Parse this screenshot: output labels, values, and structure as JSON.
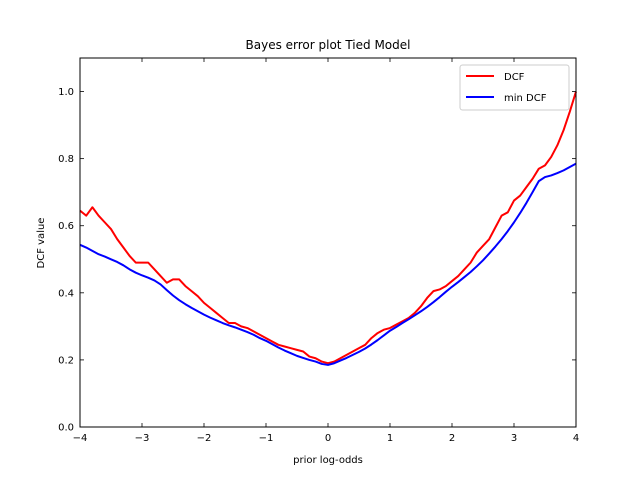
{
  "chart_data": {
    "type": "line",
    "title": "Bayes error plot Tied Model",
    "xlabel": "prior log-odds",
    "ylabel": "DCF value",
    "xlim": [
      -4,
      4
    ],
    "ylim": [
      0,
      1.1
    ],
    "xticks": [
      -4,
      -3,
      -2,
      -1,
      0,
      1,
      2,
      3,
      4
    ],
    "xtick_labels": [
      "−4",
      "−3",
      "−2",
      "−1",
      "0",
      "1",
      "2",
      "3",
      "4"
    ],
    "yticks": [
      0.0,
      0.2,
      0.4,
      0.6,
      0.8,
      1.0
    ],
    "ytick_labels": [
      "0.0",
      "0.2",
      "0.4",
      "0.6",
      "0.8",
      "1.0"
    ],
    "grid": false,
    "legend_position": "upper right",
    "series": [
      {
        "name": "DCF",
        "color": "#ff0000",
        "x": [
          -4.0,
          -3.9,
          -3.8,
          -3.7,
          -3.6,
          -3.5,
          -3.4,
          -3.3,
          -3.2,
          -3.1,
          -3.0,
          -2.9,
          -2.8,
          -2.7,
          -2.6,
          -2.5,
          -2.4,
          -2.3,
          -2.2,
          -2.1,
          -2.0,
          -1.9,
          -1.8,
          -1.7,
          -1.6,
          -1.5,
          -1.4,
          -1.3,
          -1.2,
          -1.1,
          -1.0,
          -0.9,
          -0.8,
          -0.7,
          -0.6,
          -0.5,
          -0.4,
          -0.3,
          -0.2,
          -0.1,
          0.0,
          0.1,
          0.2,
          0.3,
          0.4,
          0.5,
          0.6,
          0.7,
          0.8,
          0.9,
          1.0,
          1.1,
          1.2,
          1.3,
          1.4,
          1.5,
          1.6,
          1.7,
          1.8,
          1.9,
          2.0,
          2.1,
          2.2,
          2.3,
          2.4,
          2.5,
          2.6,
          2.7,
          2.8,
          2.9,
          3.0,
          3.1,
          3.2,
          3.3,
          3.4,
          3.5,
          3.6,
          3.7,
          3.8,
          3.9,
          4.0
        ],
        "y": [
          0.645,
          0.63,
          0.655,
          0.63,
          0.61,
          0.59,
          0.56,
          0.535,
          0.51,
          0.49,
          0.49,
          0.49,
          0.47,
          0.45,
          0.43,
          0.44,
          0.44,
          0.42,
          0.405,
          0.39,
          0.37,
          0.355,
          0.34,
          0.325,
          0.31,
          0.31,
          0.3,
          0.295,
          0.285,
          0.275,
          0.265,
          0.255,
          0.245,
          0.24,
          0.235,
          0.23,
          0.225,
          0.21,
          0.205,
          0.195,
          0.19,
          0.195,
          0.205,
          0.215,
          0.225,
          0.235,
          0.245,
          0.265,
          0.28,
          0.29,
          0.295,
          0.305,
          0.315,
          0.325,
          0.34,
          0.36,
          0.385,
          0.405,
          0.41,
          0.42,
          0.435,
          0.45,
          0.47,
          0.49,
          0.52,
          0.54,
          0.56,
          0.595,
          0.63,
          0.64,
          0.675,
          0.69,
          0.715,
          0.74,
          0.77,
          0.78,
          0.805,
          0.84,
          0.885,
          0.94,
          1.0
        ]
      },
      {
        "name": "min DCF",
        "color": "#0000ff",
        "x": [
          -4.0,
          -3.9,
          -3.8,
          -3.7,
          -3.6,
          -3.5,
          -3.4,
          -3.3,
          -3.2,
          -3.1,
          -3.0,
          -2.9,
          -2.8,
          -2.7,
          -2.6,
          -2.5,
          -2.4,
          -2.3,
          -2.2,
          -2.1,
          -2.0,
          -1.9,
          -1.8,
          -1.7,
          -1.6,
          -1.5,
          -1.4,
          -1.3,
          -1.2,
          -1.1,
          -1.0,
          -0.9,
          -0.8,
          -0.7,
          -0.6,
          -0.5,
          -0.4,
          -0.3,
          -0.2,
          -0.1,
          0.0,
          0.1,
          0.2,
          0.3,
          0.4,
          0.5,
          0.6,
          0.7,
          0.8,
          0.9,
          1.0,
          1.1,
          1.2,
          1.3,
          1.4,
          1.5,
          1.6,
          1.7,
          1.8,
          1.9,
          2.0,
          2.1,
          2.2,
          2.3,
          2.4,
          2.5,
          2.6,
          2.7,
          2.8,
          2.9,
          3.0,
          3.1,
          3.2,
          3.3,
          3.4,
          3.5,
          3.6,
          3.7,
          3.8,
          3.9,
          4.0
        ],
        "y": [
          0.543,
          0.535,
          0.525,
          0.515,
          0.508,
          0.5,
          0.492,
          0.482,
          0.47,
          0.46,
          0.452,
          0.445,
          0.437,
          0.425,
          0.408,
          0.392,
          0.378,
          0.366,
          0.355,
          0.345,
          0.335,
          0.326,
          0.318,
          0.31,
          0.303,
          0.297,
          0.29,
          0.283,
          0.275,
          0.265,
          0.257,
          0.247,
          0.237,
          0.228,
          0.22,
          0.212,
          0.206,
          0.2,
          0.195,
          0.188,
          0.185,
          0.19,
          0.198,
          0.206,
          0.215,
          0.224,
          0.234,
          0.246,
          0.259,
          0.273,
          0.287,
          0.298,
          0.31,
          0.321,
          0.333,
          0.345,
          0.358,
          0.372,
          0.387,
          0.403,
          0.418,
          0.432,
          0.447,
          0.462,
          0.479,
          0.497,
          0.517,
          0.538,
          0.56,
          0.584,
          0.61,
          0.638,
          0.668,
          0.7,
          0.733,
          0.745,
          0.75,
          0.757,
          0.765,
          0.775,
          0.785
        ]
      }
    ]
  }
}
